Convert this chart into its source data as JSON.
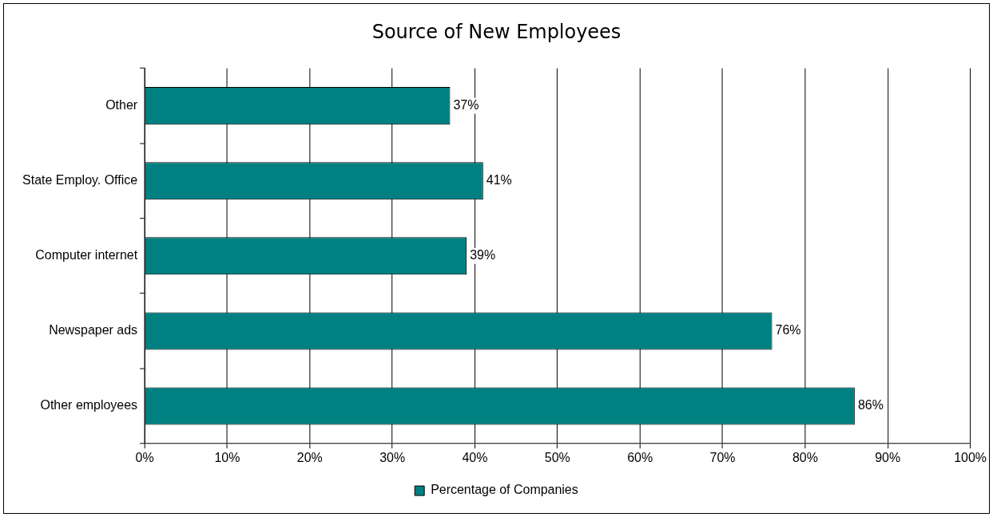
{
  "chart_data": {
    "type": "bar",
    "title": "Source of New Employees",
    "orientation": "horizontal",
    "categories": [
      "Other",
      "State Employ. Office",
      "Computer internet",
      "Newspaper ads",
      "Other employees"
    ],
    "series": [
      {
        "name": "Percentage of Companies",
        "color": "#008080",
        "values": [
          37,
          41,
          39,
          76,
          86
        ],
        "value_labels": [
          "37%",
          "41%",
          "39%",
          "76%",
          "86%"
        ]
      }
    ],
    "xlim": [
      0,
      100
    ],
    "xticks": [
      {
        "value": 0,
        "label": "0%"
      },
      {
        "value": 10,
        "label": "10%"
      },
      {
        "value": 20,
        "label": "20%"
      },
      {
        "value": 30,
        "label": "30%"
      },
      {
        "value": 40,
        "label": "40%"
      },
      {
        "value": 50,
        "label": "50%"
      },
      {
        "value": 60,
        "label": "60%"
      },
      {
        "value": 70,
        "label": "70%"
      },
      {
        "value": 80,
        "label": "80%"
      },
      {
        "value": 90,
        "label": "90%"
      },
      {
        "value": 100,
        "label": "100%"
      }
    ],
    "grid": "x",
    "legend": "bottom"
  }
}
